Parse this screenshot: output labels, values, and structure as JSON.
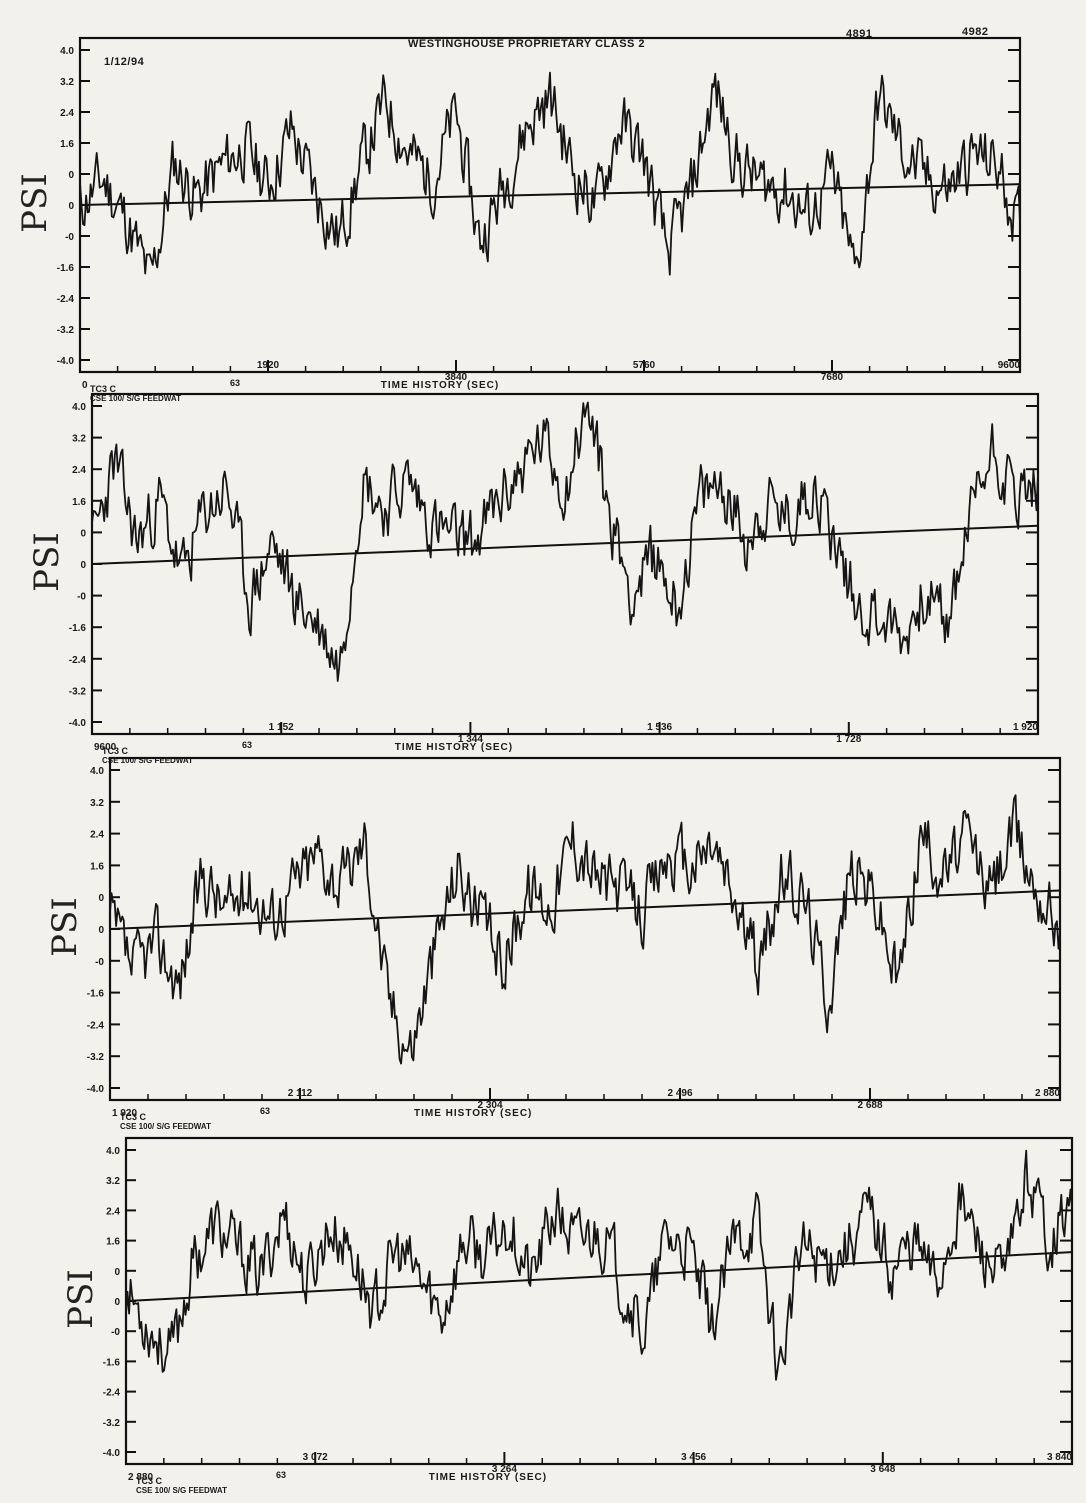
{
  "header": {
    "date": "1/12/94",
    "title": "WESTINGHOUSE PROPRIETARY CLASS 2",
    "code1": "4891",
    "code2": "4982"
  },
  "chart_data": [
    {
      "type": "line",
      "ylabel": "PSI",
      "xlabel": "TIME HISTORY (SEC)",
      "yticks": [
        "4.0",
        "3.2",
        "2.4",
        "1.6",
        "0",
        "0",
        "-0",
        "-1.6",
        "-2.4",
        "-3.2",
        "-4.0"
      ],
      "xtick_labels": [
        "0",
        "1920",
        "3840",
        "5760",
        "7680",
        "9600"
      ],
      "xlim": [
        0,
        9600
      ],
      "ylim": [
        -4.0,
        4.0
      ],
      "footer": [
        "TC3 C",
        "63",
        "CSE 100/ S/G FEEDWAT"
      ],
      "trend": [
        0.0,
        0.5
      ],
      "seed": 11,
      "series": [
        {
          "values": [
            0.0,
            0.6,
            -0.4,
            -1.9,
            1.0,
            0.2,
            0.9,
            1.4,
            0.5,
            1.8,
            0.3,
            -0.8,
            1.0,
            2.5,
            1.2,
            0.6,
            2.2,
            -0.9,
            0.4,
            1.9,
            2.6,
            0.8,
            0.0,
            2.0,
            1.1,
            -1.2,
            0.3,
            2.8,
            1.0,
            0.5,
            0.4,
            -0.3,
            0.7,
            -1.7,
            2.6,
            1.3,
            0.6,
            0.4,
            1.2,
            1.0,
            -0.6
          ]
        }
      ]
    },
    {
      "type": "line",
      "ylabel": "PSI",
      "xlabel": "TIME HISTORY (SEC)",
      "yticks": [
        "4.0",
        "3.2",
        "2.4",
        "1.6",
        "0",
        "0",
        "-0",
        "-1.6",
        "-2.4",
        "-3.2",
        "-4.0"
      ],
      "xtick_labels": [
        "9600",
        "1 152",
        "1 344",
        "1 536",
        "1 728",
        "1 920"
      ],
      "xlim": [
        9600,
        19200
      ],
      "ylim": [
        -4.0,
        4.0
      ],
      "footer": [
        "TC3 C",
        "63",
        "CSE 100/ S/G FEEDWAT"
      ],
      "trend": [
        0.0,
        0.9
      ],
      "seed": 23,
      "series": [
        {
          "values": [
            0.4,
            2.4,
            0.5,
            1.5,
            -0.3,
            1.2,
            1.8,
            -0.9,
            0.5,
            -0.8,
            -1.4,
            -2.4,
            2.1,
            1.3,
            2.0,
            1.0,
            0.6,
            0.5,
            1.4,
            2.2,
            2.9,
            1.8,
            3.8,
            1.1,
            -0.7,
            0.2,
            -1.0,
            1.5,
            1.9,
            0.6,
            1.4,
            1.0,
            2.0,
            0.5,
            -1.0,
            -1.2,
            -1.8,
            -0.6,
            -1.5,
            1.2,
            2.8,
            1.6,
            1.9
          ]
        }
      ]
    },
    {
      "type": "line",
      "ylabel": "PSI",
      "xlabel": "TIME HISTORY (SEC)",
      "yticks": [
        "4.0",
        "3.2",
        "2.4",
        "1.6",
        "0",
        "0",
        "-0",
        "-1.6",
        "-2.4",
        "-3.2",
        "-4.0"
      ],
      "xtick_labels": [
        "1 920",
        "2 112",
        "2 304",
        "2 496",
        "2 688",
        "2 880"
      ],
      "xlim": [
        19200,
        28800
      ],
      "ylim": [
        -4.0,
        4.0
      ],
      "footer": [
        "TC3 C",
        "63",
        "CSE 100/ S/G FEEDWAT"
      ],
      "trend": [
        0.0,
        0.9
      ],
      "seed": 37,
      "series": [
        {
          "values": [
            0.2,
            -1.0,
            -0.3,
            -1.3,
            1.3,
            0.4,
            1.0,
            0.3,
            1.1,
            1.8,
            1.0,
            2.1,
            -1.6,
            -2.8,
            -0.5,
            1.5,
            0.2,
            -0.8,
            1.0,
            0.6,
            2.2,
            1.2,
            0.9,
            0.4,
            1.7,
            1.4,
            2.0,
            0.6,
            -0.9,
            1.2,
            0.7,
            -1.6,
            1.5,
            0.8,
            -1.3,
            2.3,
            1.3,
            2.1,
            0.9,
            2.3,
            1.0,
            0.2
          ]
        }
      ]
    },
    {
      "type": "line",
      "ylabel": "PSI",
      "xlabel": "TIME HISTORY (SEC)",
      "yticks": [
        "4.0",
        "3.2",
        "2.4",
        "1.6",
        "0",
        "0",
        "-0",
        "-1.6",
        "-2.4",
        "-3.2",
        "-4.0"
      ],
      "xtick_labels": [
        "2 880",
        "3 072",
        "3 264",
        "3 456",
        "3 648",
        "3 840"
      ],
      "xlim": [
        28800,
        38400
      ],
      "ylim": [
        -4.0,
        4.0
      ],
      "footer": [
        "TC3 C",
        "63",
        "CSE 100/ S/G FEEDWAT"
      ],
      "trend": [
        0.0,
        1.2
      ],
      "seed": 53,
      "series": [
        {
          "values": [
            0.3,
            -0.6,
            -1.4,
            1.0,
            1.8,
            1.2,
            0.6,
            2.2,
            0.4,
            1.8,
            1.3,
            -0.3,
            1.2,
            0.6,
            -0.4,
            1.5,
            1.0,
            2.0,
            0.5,
            2.2,
            1.4,
            1.8,
            0.5,
            -0.8,
            1.6,
            1.2,
            -0.6,
            1.4,
            2.0,
            -1.7,
            1.3,
            1.0,
            1.4,
            2.2,
            0.8,
            1.5,
            0.4,
            2.5,
            1.2,
            0.4,
            3.1,
            1.6,
            2.4
          ]
        }
      ]
    }
  ]
}
